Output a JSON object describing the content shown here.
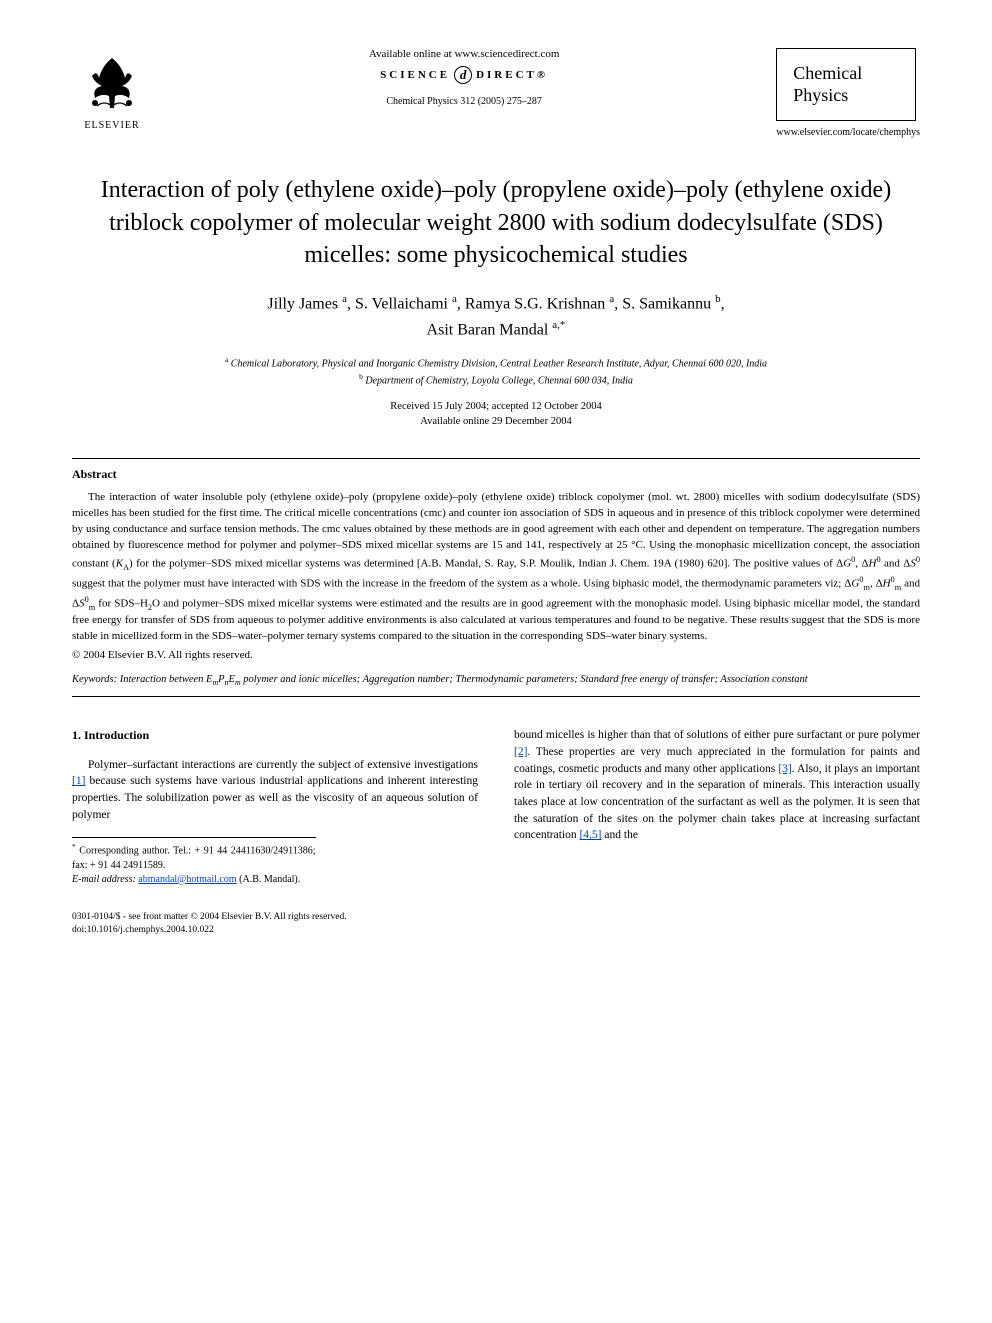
{
  "header": {
    "publisher": "ELSEVIER",
    "available_online": "Available online at www.sciencedirect.com",
    "science_left": "SCIENCE",
    "science_d": "d",
    "science_right": "DIRECT®",
    "citation": "Chemical Physics 312 (2005) 275–287",
    "journal_line1": "Chemical",
    "journal_line2": "Physics",
    "journal_url": "www.elsevier.com/locate/chemphys"
  },
  "title": "Interaction of poly (ethylene oxide)–poly (propylene oxide)–poly (ethylene oxide) triblock copolymer of molecular weight 2800 with sodium dodecylsulfate (SDS) micelles: some physicochemical studies",
  "authors_html": "Jilly James <sup>a</sup>, S. Vellaichami <sup>a</sup>, Ramya S.G. Krishnan <sup>a</sup>, S. Samikannu <sup>b</sup>,<br>Asit Baran Mandal <sup>a,*</sup>",
  "affiliations_html": "<sup>a</sup> Chemical Laboratory, Physical and Inorganic Chemistry Division, Central Leather Research Institute, Adyar, Chennai 600 020, India<br><sup>b</sup> Department of Chemistry, Loyola College, Chennai 600 034, India",
  "dates_html": "Received 15 July 2004; accepted 12 October 2004<br>Available online 29 December 2004",
  "abstract": {
    "heading": "Abstract",
    "body_html": "<span class=\"indent\">The interaction of water insoluble poly (ethylene oxide)–poly (propylene oxide)–poly (ethylene oxide) triblock copolymer (mol. wt. 2800) micelles with sodium dodecylsulfate (SDS) micelles has been studied for the first time. The critical micelle concentrations (cmc) and counter ion association of SDS in aqueous and in presence of this triblock copolymer were determined by using conductance and surface tension methods. The cmc values obtained by these methods are in good agreement with each other and dependent on temperature. The aggregation numbers obtained by fluorescence method for polymer and polymer–SDS mixed micellar systems are 15 and 141, respectively at 25 °C. Using the monophasic micellization concept, the association constant (<span class=\"ital\">K</span><sub>A</sub>) for the polymer–SDS mixed micellar systems was determined [A.B. Mandal, S. Ray, S.P. Moulik, Indian J. Chem. 19A (1980) 620]. The positive values of Δ<span class=\"ital\">G</span><sup>0</sup>, Δ<span class=\"ital\">H</span><sup>0</sup> and Δ<span class=\"ital\">S</span><sup>0</sup> suggest that the polymer must have interacted with SDS with the increase in the freedom of the system as a whole. Using biphasic model, the thermodynamic parameters viz; Δ<span class=\"ital\">G</span><sup>0</sup><sub>m</sub>, Δ<span class=\"ital\">H</span><sup>0</sup><sub>m</sub> and Δ<span class=\"ital\">S</span><sup>0</sup><sub>m</sub> for SDS–H<sub>2</sub>O and polymer–SDS mixed micellar systems were estimated and the results are in good agreement with the monophasic model. Using biphasic micellar model, the standard free energy for transfer of SDS from aqueous to polymer additive environments is also calculated at various temperatures and found to be negative. These results suggest that the SDS is more stable in micellized form in the SDS–water–polymer ternary systems compared to the situation in the corresponding SDS–water binary systems.</span>",
    "copyright": "© 2004 Elsevier B.V. All rights reserved."
  },
  "keywords_html": "<span class=\"kw-label\">Keywords:</span> Interaction between E<sub>m</sub>P<sub>n</sub>E<sub>m</sub> polymer and ionic micelles; Aggregation number; Thermodynamic parameters; Standard free energy of transfer; Association constant",
  "section1": {
    "heading": "1. Introduction",
    "left_html": "Polymer–surfactant interactions are currently the subject of extensive investigations <a class=\"ref-link\" href=\"#\" data-name=\"ref-link-1\" data-interactable=\"true\">[1]</a> because such systems have various industrial applications and inherent interesting properties. The solubilization power as well as the viscosity of an aqueous solution of polymer",
    "right_html": "bound micelles is higher than that of solutions of either pure surfactant or pure polymer <a class=\"ref-link\" href=\"#\" data-name=\"ref-link-2\" data-interactable=\"true\">[2]</a>. These properties are very much appreciated in the formulation for paints and coatings, cosmetic products and many other applications <a class=\"ref-link\" href=\"#\" data-name=\"ref-link-3\" data-interactable=\"true\">[3]</a>. Also, it plays an important role in tertiary oil recovery and in the separation of minerals. This interaction usually takes place at low concentration of the surfactant as well as the polymer. It is seen that the saturation of the sites on the polymer chain takes place at increasing surfactant concentration <a class=\"ref-link\" href=\"#\" data-name=\"ref-link-4-5\" data-interactable=\"true\">[4,5]</a> and the"
  },
  "footnotes": {
    "corr_html": "<sup>*</sup> Corresponding author. Tel.: + 91 44 24411630/24911386; fax: + 91 44 24911589.",
    "email_label": "E-mail address:",
    "email": "abmandal@hotmail.com",
    "email_suffix": "(A.B. Mandal)."
  },
  "footer": {
    "line1": "0301-0104/$ - see front matter © 2004 Elsevier B.V. All rights reserved.",
    "line2": "doi:10.1016/j.chemphys.2004.10.022"
  }
}
